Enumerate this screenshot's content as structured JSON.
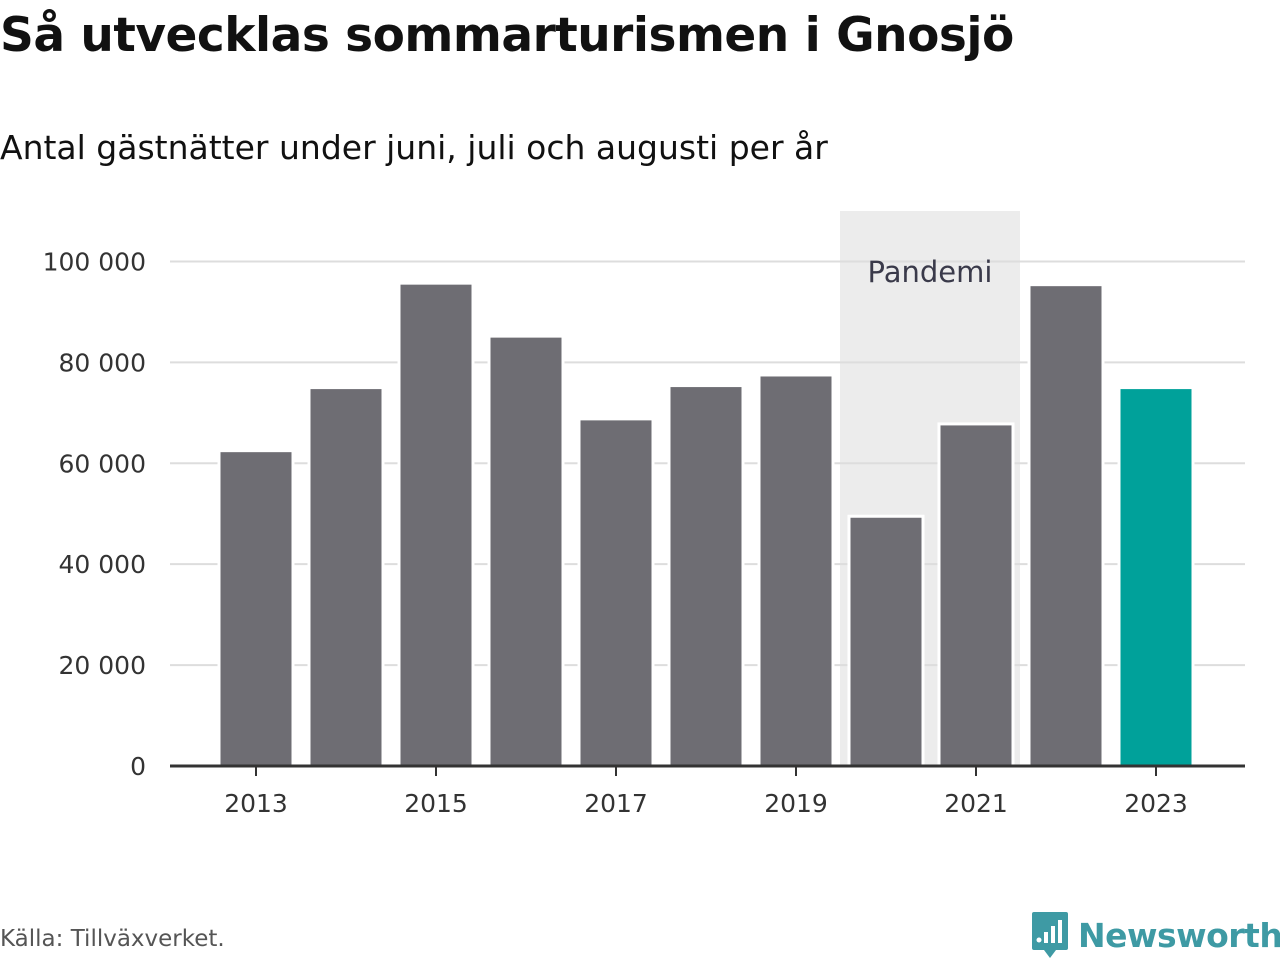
{
  "header": {
    "title": "Så utvecklas sommarturismen i Gnosjö",
    "subtitle": "Antal gästnätter under juni, juli och augusti per år"
  },
  "footer": {
    "source": "Källa: Tillväxverket.",
    "logo_text": "Newsworthy",
    "logo_icon": "bar-chart-speech-bubble-icon"
  },
  "colors": {
    "bar": "#6e6d73",
    "highlight": "#00a19a",
    "pandemic_band": "#ececec",
    "grid": "#dddddd",
    "axis": "#333333",
    "annotation_text": "#3a3a4a",
    "logo": "#3e9aa4"
  },
  "chart_data": {
    "type": "bar",
    "categories": [
      "2013",
      "2014",
      "2015",
      "2016",
      "2017",
      "2018",
      "2019",
      "2020",
      "2021",
      "2022",
      "2023"
    ],
    "values": [
      62500,
      75000,
      95700,
      85200,
      68800,
      75400,
      77500,
      49500,
      67800,
      95400,
      75000
    ],
    "highlight_category": "2023",
    "x_tick_labels": [
      "2013",
      "2015",
      "2017",
      "2019",
      "2021",
      "2023"
    ],
    "y_ticks": [
      0,
      20000,
      40000,
      60000,
      80000,
      100000
    ],
    "y_tick_labels": [
      "0",
      "20 000",
      "40 000",
      "60 000",
      "80 000",
      "100 000"
    ],
    "ylim": [
      0,
      110000
    ],
    "grid": true,
    "xlabel": "",
    "ylabel": "",
    "annotation": {
      "label": "Pandemi",
      "categories": [
        "2020",
        "2021"
      ]
    }
  }
}
